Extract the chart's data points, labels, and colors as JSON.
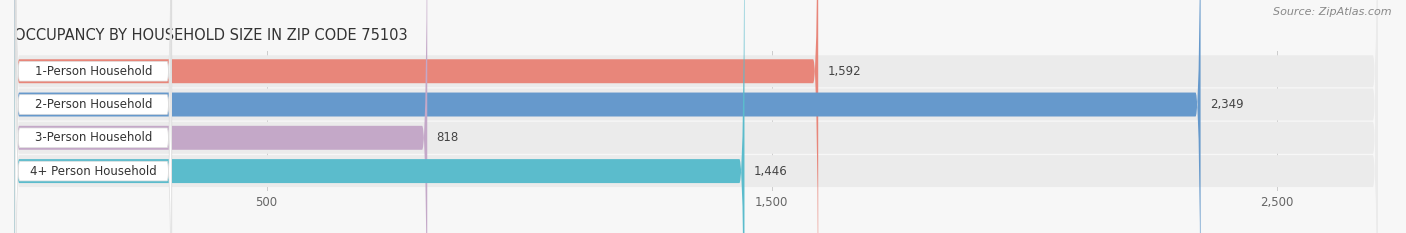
{
  "title": "OCCUPANCY BY HOUSEHOLD SIZE IN ZIP CODE 75103",
  "source": "Source: ZipAtlas.com",
  "categories": [
    "1-Person Household",
    "2-Person Household",
    "3-Person Household",
    "4+ Person Household"
  ],
  "values": [
    1592,
    2349,
    818,
    1446
  ],
  "bar_colors": [
    "#e8867a",
    "#6699cc",
    "#c4a8c8",
    "#5bbccc"
  ],
  "bar_bg_color": "#dcdcdc",
  "value_labels": [
    "1,592",
    "2,349",
    "818",
    "1,446"
  ],
  "xlim_max": 2700,
  "xticks": [
    500,
    1500,
    2500
  ],
  "xtick_labels": [
    "500",
    "1,500",
    "2,500"
  ],
  "figsize": [
    14.06,
    2.33
  ],
  "dpi": 100,
  "title_fontsize": 10.5,
  "label_fontsize": 8.5,
  "tick_fontsize": 8.5,
  "source_fontsize": 8,
  "bg_row_color": "#ebebeb",
  "white_label_bg": "#ffffff",
  "title_color": "#333333",
  "source_color": "#888888",
  "value_color": "#444444",
  "category_color": "#333333",
  "grid_color": "#cccccc"
}
